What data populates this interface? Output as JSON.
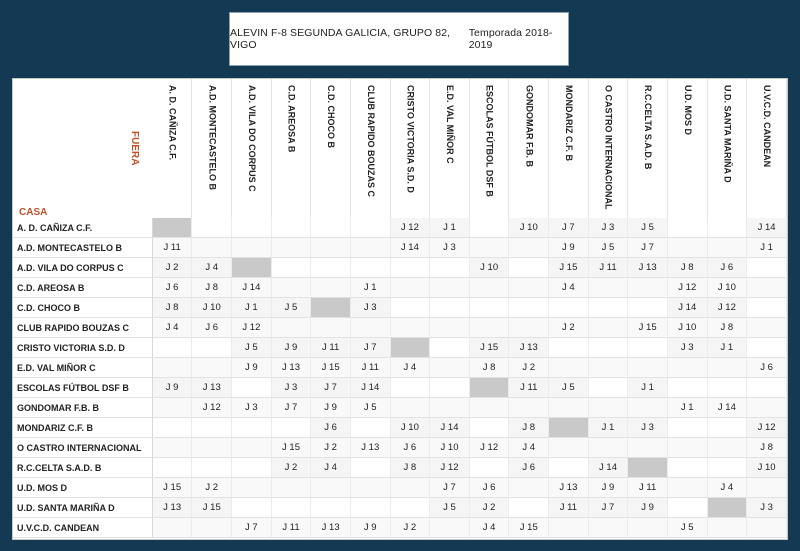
{
  "header": {
    "title": "ALEVIN F-8 SEGUNDA GALICIA, GRUPO 82, VIGO",
    "season": "Temporada 2018-2019"
  },
  "labels": {
    "away": "FUERA",
    "home": "CASA"
  },
  "columns": [
    "A. D. CAÑIZA C.F.",
    "A.D. MONTECASTELO B",
    "A.D. VILA DO CORPUS C",
    "C.D. AREOSA B",
    "C.D. CHOCO B",
    "CLUB RAPIDO BOUZAS C",
    "CRISTO VICTORIA S.D. D",
    "E.D. VAL MIÑOR C",
    "ESCOLAS FÚTBOL DSF B",
    "GONDOMAR F.B. B",
    "MONDARIZ C.F. B",
    "O CASTRO INTERNACIONAL",
    "R.C.CELTA S.A.D. B",
    "U.D. MOS D",
    "U.D. SANTA MARIÑA D",
    "U.V.C.D. CANDEAN"
  ],
  "rows": [
    {
      "team": "A. D. CAÑIZA C.F.",
      "cells": [
        "",
        "",
        "",
        "",
        "",
        "",
        "J 12",
        "J 1",
        "",
        "J 10",
        "J 7",
        "J 3",
        "J 5",
        "",
        "",
        "J 14"
      ]
    },
    {
      "team": "A.D. MONTECASTELO B",
      "cells": [
        "J 11",
        "",
        "",
        "",
        "",
        "",
        "J 14",
        "J 3",
        "",
        "",
        "J 9",
        "J 5",
        "J 7",
        "",
        "",
        "J 1"
      ]
    },
    {
      "team": "A.D. VILA DO CORPUS C",
      "cells": [
        "J 2",
        "J 4",
        "",
        "",
        "",
        "",
        "",
        "",
        "J 10",
        "",
        "J 15",
        "J 11",
        "J 13",
        "J 8",
        "J 6",
        ""
      ]
    },
    {
      "team": "C.D. AREOSA B",
      "cells": [
        "J 6",
        "J 8",
        "J 14",
        "",
        "",
        "J 1",
        "",
        "",
        "",
        "",
        "J 4",
        "",
        "",
        "J 12",
        "J 10",
        ""
      ]
    },
    {
      "team": "C.D. CHOCO B",
      "cells": [
        "J 8",
        "J 10",
        "J 1",
        "J 5",
        "",
        "J 3",
        "",
        "",
        "",
        "",
        "",
        "",
        "",
        "J 14",
        "J 12",
        ""
      ]
    },
    {
      "team": "CLUB RAPIDO BOUZAS C",
      "cells": [
        "J 4",
        "J 6",
        "J 12",
        "",
        "",
        "",
        "",
        "",
        "",
        "",
        "J 2",
        "",
        "J 15",
        "J 10",
        "J 8",
        ""
      ]
    },
    {
      "team": "CRISTO VICTORIA S.D. D",
      "cells": [
        "",
        "",
        "J 5",
        "J 9",
        "J 11",
        "J 7",
        "",
        "",
        "J 15",
        "J 13",
        "",
        "",
        "",
        "J 3",
        "J 1",
        ""
      ]
    },
    {
      "team": "E.D. VAL MIÑOR C",
      "cells": [
        "",
        "",
        "J 9",
        "J 13",
        "J 15",
        "J 11",
        "J 4",
        "",
        "J 8",
        "J 2",
        "",
        "",
        "",
        "",
        "",
        "J 6"
      ]
    },
    {
      "team": "ESCOLAS FÚTBOL DSF B",
      "cells": [
        "J 9",
        "J 13",
        "",
        "J 3",
        "J 7",
        "J 14",
        "",
        "",
        "",
        "J 11",
        "J 5",
        "",
        "J 1",
        "",
        "",
        ""
      ]
    },
    {
      "team": "GONDOMAR F.B. B",
      "cells": [
        "",
        "J 12",
        "J 3",
        "J 7",
        "J 9",
        "J 5",
        "",
        "",
        "",
        "",
        "",
        "",
        "",
        "J 1",
        "J 14",
        ""
      ]
    },
    {
      "team": "MONDARIZ C.F. B",
      "cells": [
        "",
        "",
        "",
        "",
        "J 6",
        "",
        "J 10",
        "J 14",
        "",
        "J 8",
        "",
        "J 1",
        "J 3",
        "",
        "",
        "J 12"
      ]
    },
    {
      "team": "O CASTRO INTERNACIONAL",
      "cells": [
        "",
        "",
        "",
        "J 15",
        "J 2",
        "J 13",
        "J 6",
        "J 10",
        "J 12",
        "J 4",
        "",
        "",
        "",
        "",
        "",
        "J 8"
      ]
    },
    {
      "team": "R.C.CELTA S.A.D. B",
      "cells": [
        "",
        "",
        "",
        "J 2",
        "J 4",
        "",
        "J 8",
        "J 12",
        "",
        "J 6",
        "",
        "J 14",
        "",
        "",
        "",
        "J 10"
      ]
    },
    {
      "team": "U.D. MOS D",
      "cells": [
        "J 15",
        "J 2",
        "",
        "",
        "",
        "",
        "",
        "J 7",
        "J 6",
        "",
        "J 13",
        "J 9",
        "J 11",
        "",
        "J 4",
        ""
      ]
    },
    {
      "team": "U.D. SANTA MARIÑA D",
      "cells": [
        "J 13",
        "J 15",
        "",
        "",
        "",
        "",
        "",
        "J 5",
        "J 2",
        "",
        "J 11",
        "J 7",
        "J 9",
        "",
        "",
        "J 3"
      ]
    },
    {
      "team": "U.V.C.D. CANDEAN",
      "cells": [
        "",
        "",
        "J 7",
        "J 11",
        "J 13",
        "J 9",
        "J 2",
        "",
        "J 4",
        "J 15",
        "",
        "",
        "",
        "J 5",
        "",
        ""
      ]
    }
  ]
}
